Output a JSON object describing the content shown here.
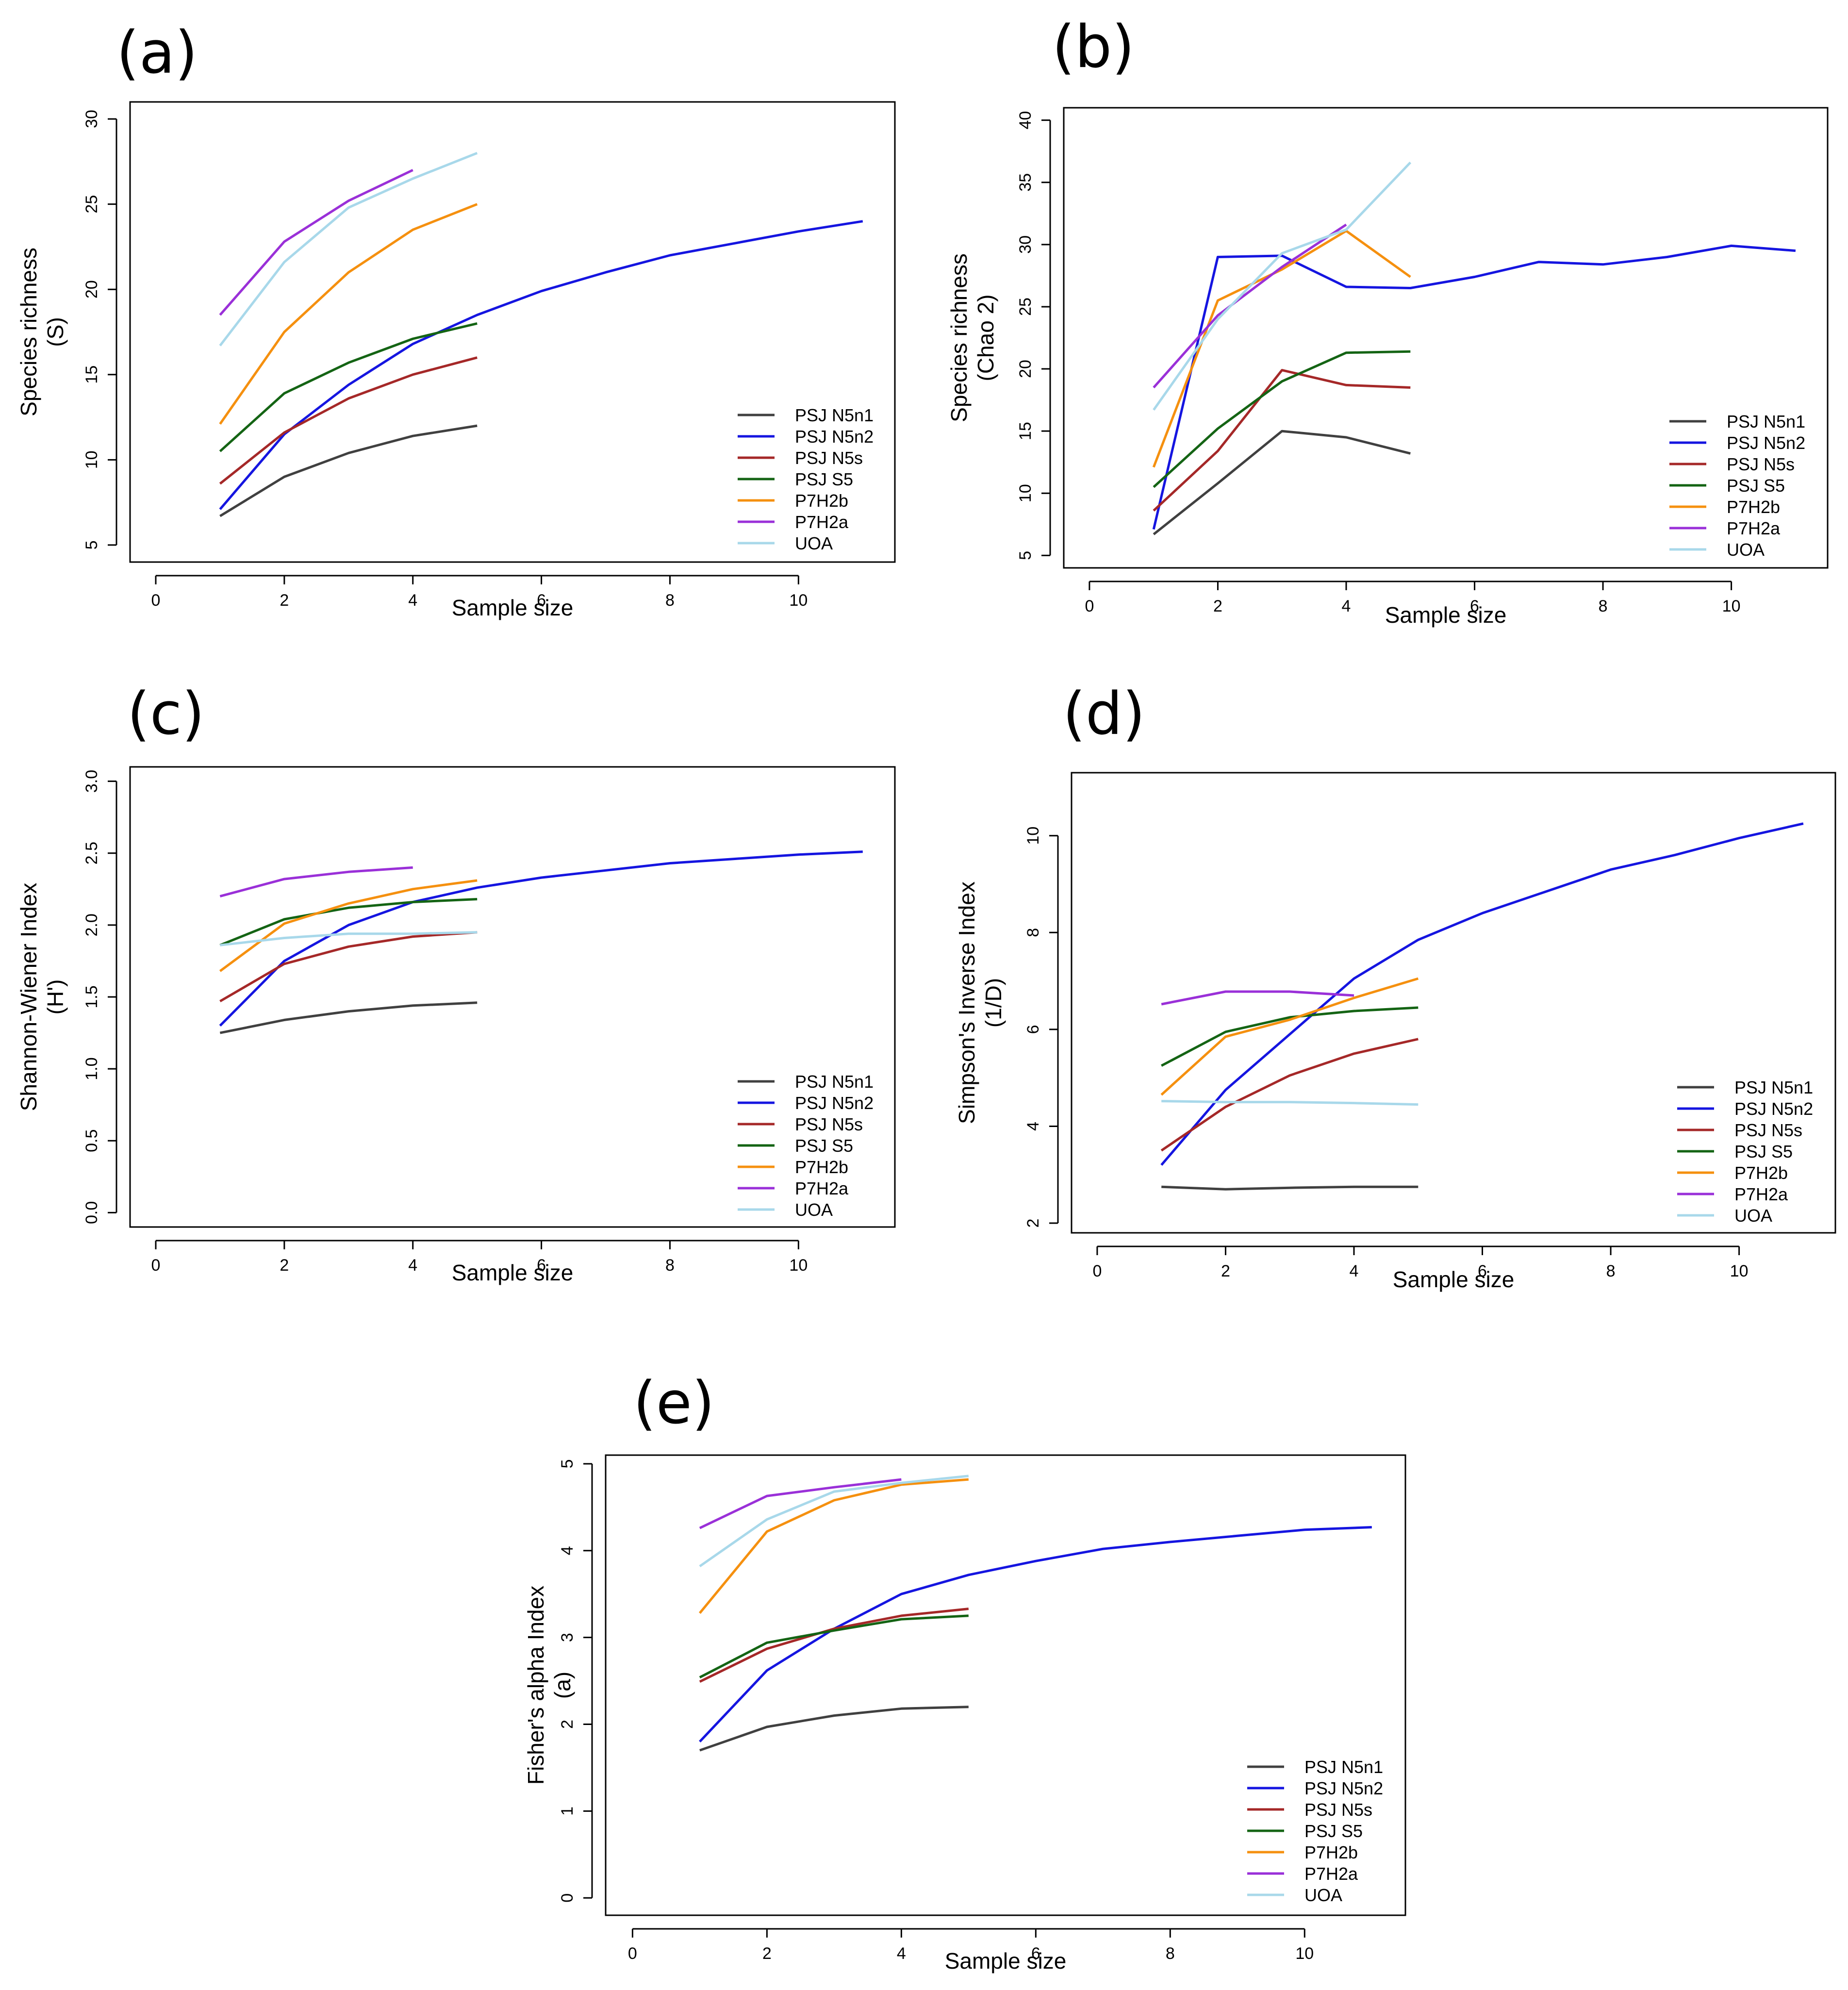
{
  "figure": {
    "panels": [
      "(a)",
      "(b)",
      "(c)",
      "(d)",
      "(e)"
    ]
  },
  "legend": [
    "PSJ N5n1",
    "PSJ N5n2",
    "PSJ N5s",
    "PSJ S5",
    "P7H2b",
    "P7H2a",
    "UOA"
  ],
  "colors": {
    "PSJ N5n1": "#404040",
    "PSJ N5n2": "#1515e0",
    "PSJ N5s": "#a52828",
    "PSJ S5": "#146414",
    "P7H2b": "#f5900f",
    "P7H2a": "#9a30d8",
    "UOA": "#a8d8ea"
  },
  "chart_data": [
    {
      "type": "line",
      "panel": "(a)",
      "xlabel": "Sample size",
      "ylabel": [
        "Species richness",
        "(S)"
      ],
      "xlim": [
        -0.4,
        11.5
      ],
      "ylim": [
        4,
        31
      ],
      "xticks": [
        0,
        2,
        4,
        6,
        8,
        10
      ],
      "yticks": [
        5,
        10,
        15,
        20,
        25,
        30
      ],
      "series": [
        {
          "name": "PSJ N5n1",
          "x": [
            1,
            2,
            3,
            4,
            5
          ],
          "y": [
            6.7,
            9.0,
            10.4,
            11.4,
            12.0
          ]
        },
        {
          "name": "PSJ N5n2",
          "x": [
            1,
            2,
            3,
            4,
            5,
            6,
            7,
            8,
            9,
            10,
            11
          ],
          "y": [
            7.1,
            11.5,
            14.4,
            16.8,
            18.5,
            19.9,
            21.0,
            22.0,
            22.7,
            23.4,
            24.0
          ]
        },
        {
          "name": "PSJ N5s",
          "x": [
            1,
            2,
            3,
            4,
            5
          ],
          "y": [
            8.6,
            11.6,
            13.6,
            15.0,
            16.0
          ]
        },
        {
          "name": "PSJ S5",
          "x": [
            1,
            2,
            3,
            4,
            5
          ],
          "y": [
            10.5,
            13.9,
            15.7,
            17.1,
            18.0
          ]
        },
        {
          "name": "P7H2b",
          "x": [
            1,
            2,
            3,
            4,
            5
          ],
          "y": [
            12.1,
            17.5,
            21.0,
            23.5,
            25.0
          ]
        },
        {
          "name": "P7H2a",
          "x": [
            1,
            2,
            3,
            4
          ],
          "y": [
            18.5,
            22.8,
            25.2,
            27.0
          ]
        },
        {
          "name": "UOA",
          "x": [
            1,
            2,
            3,
            4,
            5
          ],
          "y": [
            16.7,
            21.6,
            24.8,
            26.5,
            28.0
          ]
        }
      ]
    },
    {
      "type": "line",
      "panel": "(b)",
      "xlabel": "Sample size",
      "ylabel": [
        "Species richness",
        "(Chao 2)"
      ],
      "xlim": [
        -0.4,
        11.5
      ],
      "ylim": [
        4,
        41
      ],
      "xticks": [
        0,
        2,
        4,
        6,
        8,
        10
      ],
      "yticks": [
        5,
        10,
        15,
        20,
        25,
        30,
        35,
        40
      ],
      "series": [
        {
          "name": "PSJ N5n1",
          "x": [
            1,
            2,
            3,
            4,
            5
          ],
          "y": [
            6.7,
            10.8,
            15.0,
            14.5,
            13.2
          ]
        },
        {
          "name": "PSJ N5n2",
          "x": [
            1,
            2,
            3,
            4,
            5,
            6,
            7,
            8,
            9,
            10,
            11
          ],
          "y": [
            7.1,
            29.0,
            29.1,
            26.6,
            26.5,
            27.4,
            28.6,
            28.4,
            29.0,
            29.9,
            29.5
          ]
        },
        {
          "name": "PSJ N5s",
          "x": [
            1,
            2,
            3,
            4,
            5
          ],
          "y": [
            8.6,
            13.4,
            19.9,
            18.7,
            18.5
          ]
        },
        {
          "name": "PSJ S5",
          "x": [
            1,
            2,
            3,
            4,
            5
          ],
          "y": [
            10.5,
            15.2,
            19.0,
            21.3,
            21.4
          ]
        },
        {
          "name": "P7H2b",
          "x": [
            1,
            2,
            3,
            4,
            5
          ],
          "y": [
            12.1,
            25.5,
            28.0,
            31.1,
            27.4
          ]
        },
        {
          "name": "P7H2a",
          "x": [
            1,
            2,
            3,
            4
          ],
          "y": [
            18.5,
            24.3,
            28.2,
            31.6
          ]
        },
        {
          "name": "UOA",
          "x": [
            1,
            2,
            3,
            4,
            5
          ],
          "y": [
            16.7,
            24.0,
            29.3,
            31.2,
            36.6
          ]
        }
      ]
    },
    {
      "type": "line",
      "panel": "(c)",
      "xlabel": "Sample size",
      "ylabel": [
        "Shannon-Wiener Index",
        "(H')"
      ],
      "xlim": [
        -0.4,
        11.5
      ],
      "ylim": [
        -0.1,
        3.1
      ],
      "xticks": [
        0,
        2,
        4,
        6,
        8,
        10
      ],
      "yticks": [
        0.0,
        0.5,
        1.0,
        1.5,
        2.0,
        2.5,
        3.0
      ],
      "series": [
        {
          "name": "PSJ N5n1",
          "x": [
            1,
            2,
            3,
            4,
            5
          ],
          "y": [
            1.25,
            1.34,
            1.4,
            1.44,
            1.46
          ]
        },
        {
          "name": "PSJ N5n2",
          "x": [
            1,
            2,
            3,
            4,
            5,
            6,
            7,
            8,
            9,
            10,
            11
          ],
          "y": [
            1.3,
            1.75,
            2.0,
            2.16,
            2.26,
            2.33,
            2.38,
            2.43,
            2.46,
            2.49,
            2.51
          ]
        },
        {
          "name": "PSJ N5s",
          "x": [
            1,
            2,
            3,
            4,
            5
          ],
          "y": [
            1.47,
            1.73,
            1.85,
            1.92,
            1.95
          ]
        },
        {
          "name": "PSJ S5",
          "x": [
            1,
            2,
            3,
            4,
            5
          ],
          "y": [
            1.86,
            2.04,
            2.12,
            2.16,
            2.18
          ]
        },
        {
          "name": "P7H2b",
          "x": [
            1,
            2,
            3,
            4,
            5
          ],
          "y": [
            1.68,
            2.01,
            2.15,
            2.25,
            2.31
          ]
        },
        {
          "name": "P7H2a",
          "x": [
            1,
            2,
            3,
            4
          ],
          "y": [
            2.2,
            2.32,
            2.37,
            2.4
          ]
        },
        {
          "name": "UOA",
          "x": [
            1,
            2,
            3,
            4,
            5
          ],
          "y": [
            1.86,
            1.91,
            1.94,
            1.94,
            1.95
          ]
        }
      ]
    },
    {
      "type": "line",
      "panel": "(d)",
      "xlabel": "Sample size",
      "ylabel": [
        "Simpson's Inverse Index",
        "(1/D)"
      ],
      "xlim": [
        -0.4,
        11.5
      ],
      "ylim": [
        1.8,
        11.3
      ],
      "xticks": [
        0,
        2,
        4,
        6,
        8,
        10
      ],
      "yticks": [
        2,
        4,
        6,
        8,
        10
      ],
      "series": [
        {
          "name": "PSJ N5n1",
          "x": [
            1,
            2,
            3,
            4,
            5
          ],
          "y": [
            2.75,
            2.7,
            2.73,
            2.75,
            2.75
          ]
        },
        {
          "name": "PSJ N5n2",
          "x": [
            1,
            2,
            3,
            4,
            5,
            6,
            7,
            8,
            9,
            10,
            11
          ],
          "y": [
            3.2,
            4.75,
            5.9,
            7.05,
            7.85,
            8.4,
            8.85,
            9.3,
            9.6,
            9.95,
            10.25
          ]
        },
        {
          "name": "PSJ N5s",
          "x": [
            1,
            2,
            3,
            4,
            5
          ],
          "y": [
            3.5,
            4.4,
            5.05,
            5.5,
            5.8
          ]
        },
        {
          "name": "PSJ S5",
          "x": [
            1,
            2,
            3,
            4,
            5
          ],
          "y": [
            5.25,
            5.95,
            6.25,
            6.38,
            6.45
          ]
        },
        {
          "name": "P7H2b",
          "x": [
            1,
            2,
            3,
            4,
            5
          ],
          "y": [
            4.65,
            5.85,
            6.2,
            6.65,
            7.05
          ]
        },
        {
          "name": "P7H2a",
          "x": [
            1,
            2,
            3,
            4
          ],
          "y": [
            6.52,
            6.78,
            6.78,
            6.7
          ]
        },
        {
          "name": "UOA",
          "x": [
            1,
            2,
            3,
            4,
            5
          ],
          "y": [
            4.52,
            4.5,
            4.5,
            4.48,
            4.45
          ]
        }
      ]
    },
    {
      "type": "line",
      "panel": "(e)",
      "xlabel": "Sample size",
      "ylabel": [
        "Fisher's alpha Index",
        "(a)"
      ],
      "xlim": [
        -0.4,
        11.5
      ],
      "ylim": [
        -0.2,
        5.1
      ],
      "xticks": [
        0,
        2,
        4,
        6,
        8,
        10
      ],
      "yticks": [
        0,
        1,
        2,
        3,
        4,
        5
      ],
      "series": [
        {
          "name": "PSJ N5n1",
          "x": [
            1,
            2,
            3,
            4,
            5
          ],
          "y": [
            1.7,
            1.97,
            2.1,
            2.18,
            2.2
          ]
        },
        {
          "name": "PSJ N5n2",
          "x": [
            1,
            2,
            3,
            4,
            5,
            6,
            7,
            8,
            9,
            10,
            11
          ],
          "y": [
            1.8,
            2.62,
            3.1,
            3.5,
            3.72,
            3.88,
            4.02,
            4.1,
            4.17,
            4.24,
            4.27
          ]
        },
        {
          "name": "PSJ N5s",
          "x": [
            1,
            2,
            3,
            4,
            5
          ],
          "y": [
            2.49,
            2.87,
            3.1,
            3.25,
            3.33
          ]
        },
        {
          "name": "PSJ S5",
          "x": [
            1,
            2,
            3,
            4,
            5
          ],
          "y": [
            2.54,
            2.94,
            3.08,
            3.21,
            3.25
          ]
        },
        {
          "name": "P7H2b",
          "x": [
            1,
            2,
            3,
            4,
            5
          ],
          "y": [
            3.28,
            4.22,
            4.58,
            4.76,
            4.82
          ]
        },
        {
          "name": "P7H2a",
          "x": [
            1,
            2,
            3,
            4
          ],
          "y": [
            4.26,
            4.63,
            4.73,
            4.82
          ]
        },
        {
          "name": "UOA",
          "x": [
            1,
            2,
            3,
            4,
            5
          ],
          "y": [
            3.82,
            4.36,
            4.68,
            4.78,
            4.86
          ]
        }
      ]
    }
  ]
}
